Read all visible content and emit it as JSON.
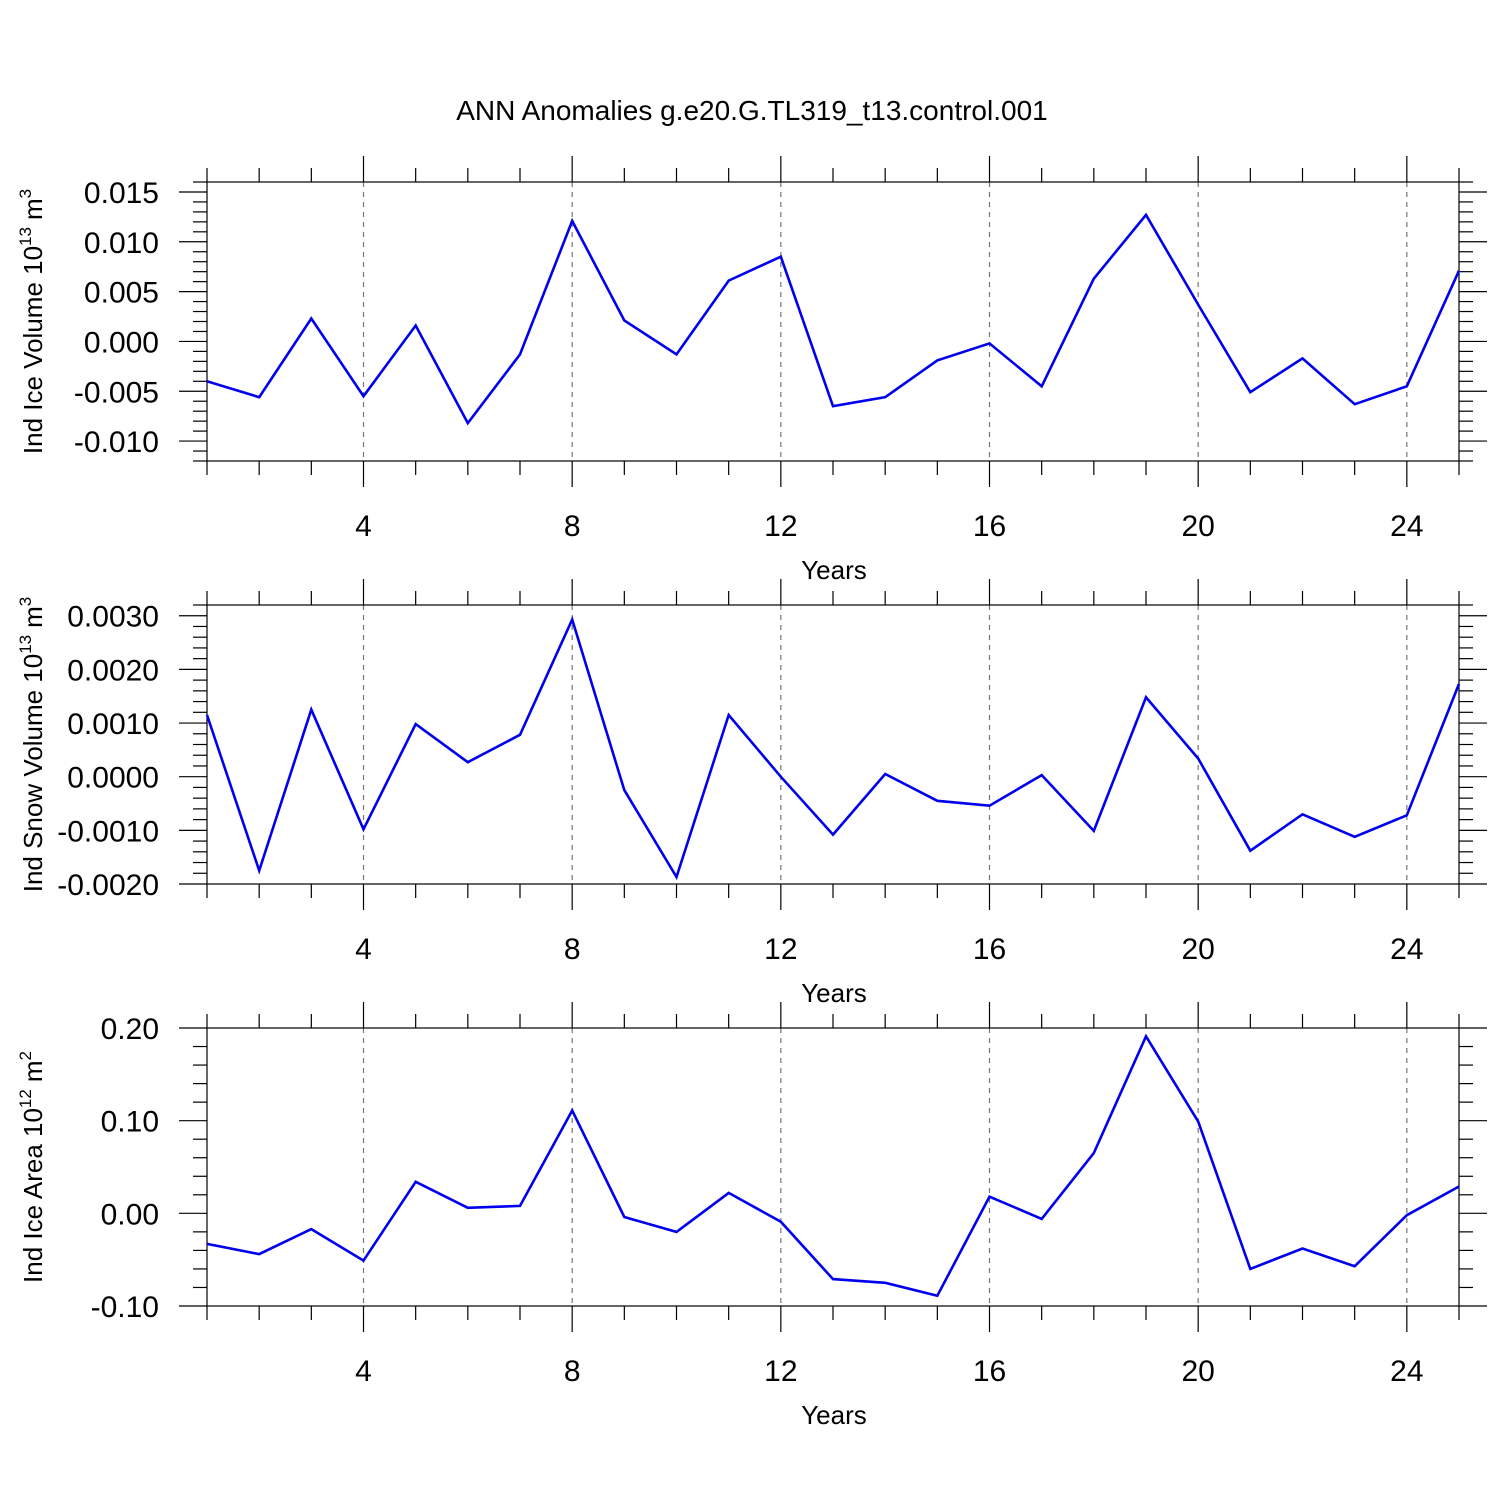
{
  "title": "ANN Anomalies g.e20.G.TL319_t13.control.001",
  "chart_data": [
    {
      "type": "line",
      "ylabel_text": "Ind Ice Volume 10",
      "ylabel_exp": "13",
      "ylabel_unit": "m",
      "ylabel_unit_exp": "3",
      "xlabel": "Years",
      "xlim": [
        1,
        25
      ],
      "ylim": [
        -0.012,
        0.016
      ],
      "yticks": [
        -0.01,
        -0.005,
        0.0,
        0.005,
        0.01,
        0.015
      ],
      "ytick_labels": [
        "-0.010",
        "-0.005",
        "0.000",
        "0.005",
        "0.010",
        "0.015"
      ],
      "xticks": [
        4,
        8,
        12,
        16,
        20,
        24
      ],
      "xtick_labels": [
        "4",
        "8",
        "12",
        "16",
        "20",
        "24"
      ],
      "line_color": "#0000ee",
      "x": [
        1,
        2,
        3,
        4,
        5,
        6,
        7,
        8,
        9,
        10,
        11,
        12,
        13,
        14,
        15,
        16,
        17,
        18,
        19,
        20,
        21,
        22,
        23,
        24,
        25
      ],
      "values": [
        -0.004,
        -0.0056,
        0.0023,
        -0.0055,
        0.0016,
        -0.0082,
        -0.0013,
        0.0121,
        0.0021,
        -0.0013,
        0.0061,
        0.0085,
        -0.0065,
        -0.0056,
        -0.0019,
        -0.0002,
        -0.0045,
        0.0063,
        0.0127,
        0.0037,
        -0.0051,
        -0.0017,
        -0.0063,
        -0.0045,
        0.0071
      ]
    },
    {
      "type": "line",
      "ylabel_text": "Ind Snow Volume 10",
      "ylabel_exp": "13",
      "ylabel_unit": "m",
      "ylabel_unit_exp": "3",
      "xlabel": "Years",
      "xlim": [
        1,
        25
      ],
      "ylim": [
        -0.002,
        0.0032
      ],
      "yticks": [
        -0.002,
        -0.001,
        0.0,
        0.001,
        0.002,
        0.003
      ],
      "ytick_labels": [
        "-0.0020",
        "-0.0010",
        "0.0000",
        "0.0010",
        "0.0020",
        "0.0030"
      ],
      "xticks": [
        4,
        8,
        12,
        16,
        20,
        24
      ],
      "xtick_labels": [
        "4",
        "8",
        "12",
        "16",
        "20",
        "24"
      ],
      "line_color": "#0000ee",
      "x": [
        1,
        2,
        3,
        4,
        5,
        6,
        7,
        8,
        9,
        10,
        11,
        12,
        13,
        14,
        15,
        16,
        17,
        18,
        19,
        20,
        21,
        22,
        23,
        24,
        25
      ],
      "values": [
        0.00115,
        -0.00175,
        0.00125,
        -0.00098,
        0.00098,
        0.00027,
        0.00078,
        0.00293,
        -0.00025,
        -0.00187,
        0.00115,
        0.0,
        -0.00108,
        5e-05,
        -0.00045,
        -0.00054,
        3e-05,
        -0.00101,
        0.00148,
        0.00034,
        -0.00138,
        -0.0007,
        -0.00112,
        -0.00072,
        0.00173
      ]
    },
    {
      "type": "line",
      "ylabel_text": "Ind Ice Area 10",
      "ylabel_exp": "12",
      "ylabel_unit": "m",
      "ylabel_unit_exp": "2",
      "xlabel": "Years",
      "xlim": [
        1,
        25
      ],
      "ylim": [
        -0.1,
        0.2
      ],
      "yticks": [
        -0.1,
        0.0,
        0.1,
        0.2
      ],
      "ytick_labels": [
        "-0.10",
        "0.00",
        "0.10",
        "0.20"
      ],
      "xticks": [
        4,
        8,
        12,
        16,
        20,
        24
      ],
      "xtick_labels": [
        "4",
        "8",
        "12",
        "16",
        "20",
        "24"
      ],
      "line_color": "#0000ee",
      "x": [
        1,
        2,
        3,
        4,
        5,
        6,
        7,
        8,
        9,
        10,
        11,
        12,
        13,
        14,
        15,
        16,
        17,
        18,
        19,
        20,
        21,
        22,
        23,
        24,
        25
      ],
      "values": [
        -0.033,
        -0.044,
        -0.017,
        -0.051,
        0.034,
        0.006,
        0.008,
        0.111,
        -0.004,
        -0.02,
        0.022,
        -0.009,
        -0.071,
        -0.075,
        -0.089,
        0.018,
        -0.006,
        0.065,
        0.191,
        0.099,
        -0.06,
        -0.038,
        -0.057,
        -0.002,
        0.029
      ]
    }
  ]
}
